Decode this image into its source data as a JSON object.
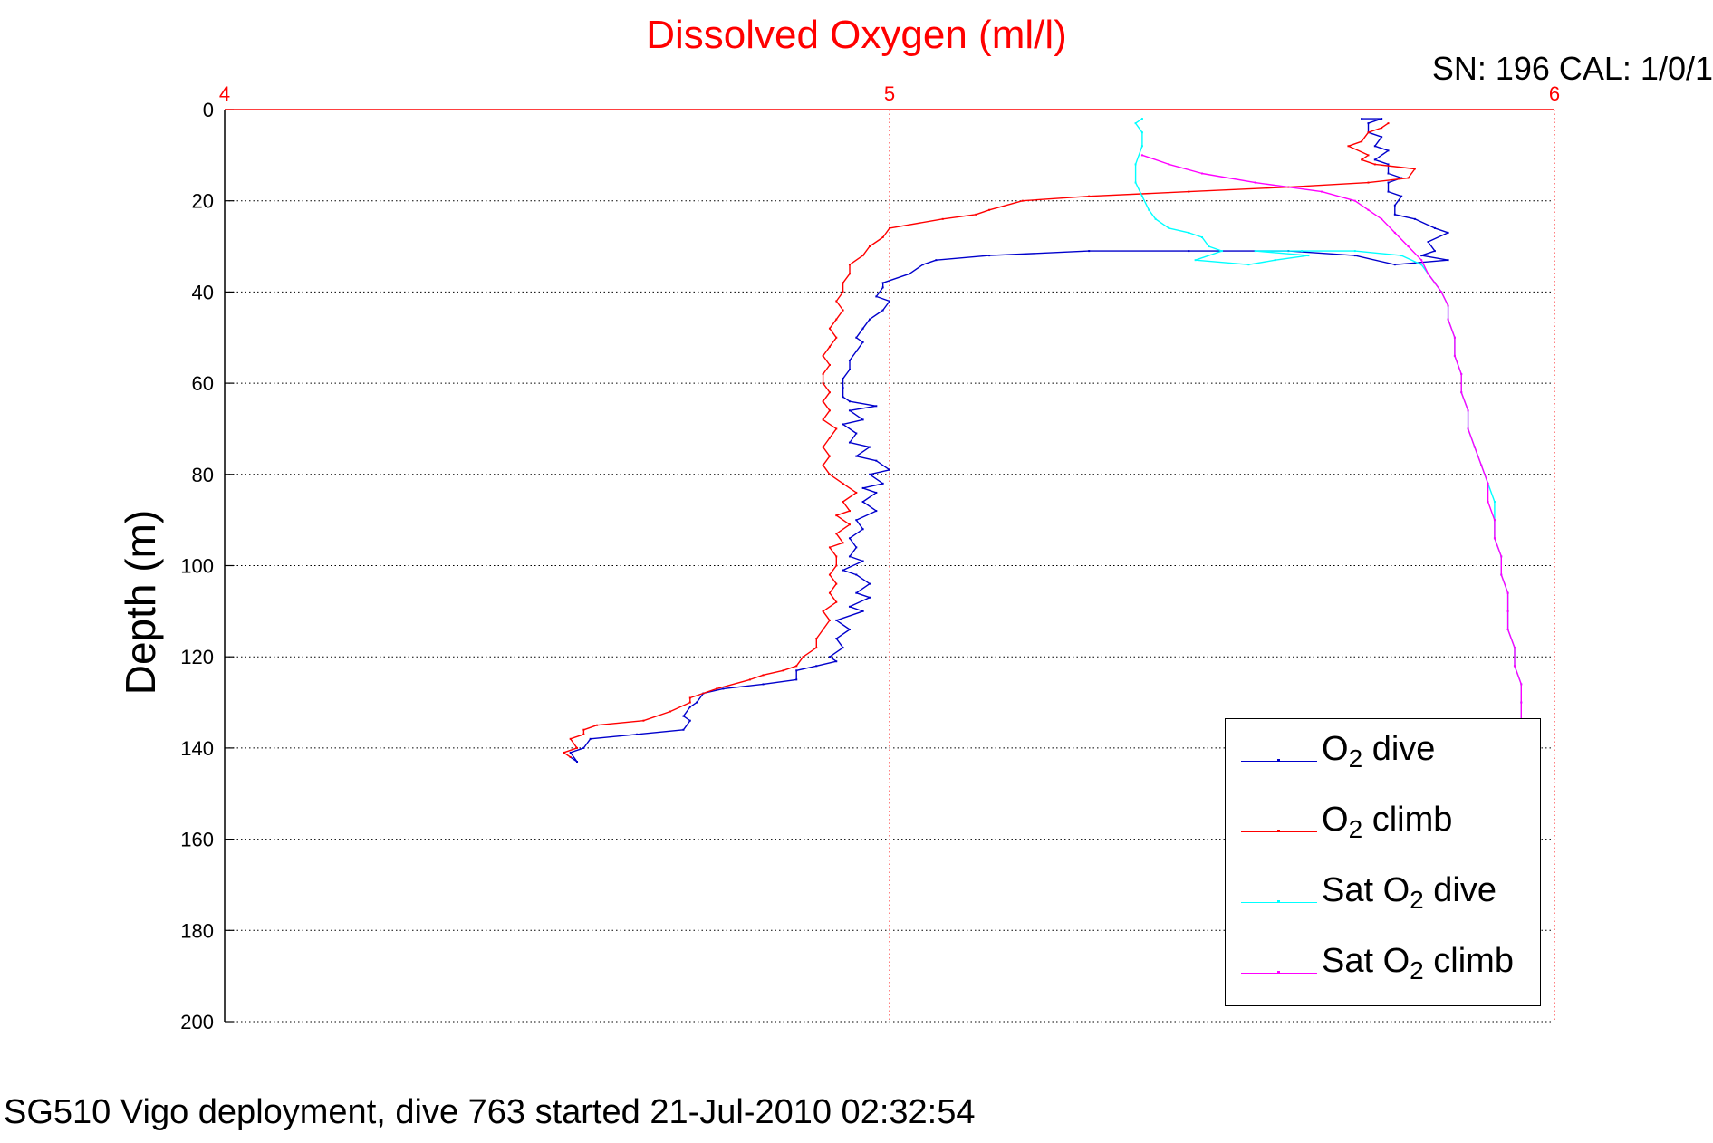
{
  "title_top": "Dissolved Oxygen (ml/l)",
  "sn_label": "SN: 196  CAL: 1/0/1",
  "caption": "SG510 Vigo deployment, dive 763 started 21-Jul-2010 02:32:54",
  "legend": {
    "items": [
      {
        "prefix": "O",
        "sub": "2",
        "suffix": " dive",
        "color": "#0000cc"
      },
      {
        "prefix": "O",
        "sub": "2",
        "suffix": " climb",
        "color": "#ff0000"
      },
      {
        "prefix": "Sat O",
        "sub": "2",
        "suffix": " dive",
        "color": "#00ffff"
      },
      {
        "prefix": "Sat O",
        "sub": "2",
        "suffix": " climb",
        "color": "#ff00ff"
      }
    ]
  },
  "chart_data": {
    "type": "line",
    "title": "Dissolved Oxygen (ml/l)",
    "xlabel": "",
    "ylabel": "Depth (m)",
    "xlim": [
      4,
      6
    ],
    "ylim": [
      0,
      200
    ],
    "y_reversed": true,
    "x_axis_position": "top",
    "x_ticks": [
      4,
      5,
      6
    ],
    "y_ticks": [
      0,
      20,
      40,
      60,
      80,
      100,
      120,
      140,
      160,
      180,
      200
    ],
    "x_tick_color": "#ff0000",
    "x_grid_color": "#ff0000",
    "grid": true,
    "legend_position": "bottom-right",
    "series": [
      {
        "name": "O2 dive",
        "color": "#0000cc",
        "points": [
          [
            5.71,
            2
          ],
          [
            5.74,
            2
          ],
          [
            5.72,
            3
          ],
          [
            5.72,
            5
          ],
          [
            5.74,
            6
          ],
          [
            5.73,
            8
          ],
          [
            5.75,
            9
          ],
          [
            5.73,
            11
          ],
          [
            5.75,
            12
          ],
          [
            5.75,
            14
          ],
          [
            5.77,
            15
          ],
          [
            5.75,
            16
          ],
          [
            5.75,
            18
          ],
          [
            5.77,
            19
          ],
          [
            5.76,
            21
          ],
          [
            5.76,
            23
          ],
          [
            5.79,
            24
          ],
          [
            5.82,
            26
          ],
          [
            5.84,
            27
          ],
          [
            5.81,
            29
          ],
          [
            5.82,
            31
          ],
          [
            5.8,
            32
          ],
          [
            5.84,
            33
          ],
          [
            5.76,
            34
          ],
          [
            5.7,
            32
          ],
          [
            5.6,
            31
          ],
          [
            5.45,
            31
          ],
          [
            5.3,
            31
          ],
          [
            5.15,
            32
          ],
          [
            5.07,
            33
          ],
          [
            5.05,
            34
          ],
          [
            5.03,
            36
          ],
          [
            4.99,
            38
          ],
          [
            4.99,
            39
          ],
          [
            4.98,
            41
          ],
          [
            5.0,
            42
          ],
          [
            4.99,
            44
          ],
          [
            4.97,
            46
          ],
          [
            4.96,
            48
          ],
          [
            4.95,
            50
          ],
          [
            4.96,
            51
          ],
          [
            4.95,
            53
          ],
          [
            4.94,
            55
          ],
          [
            4.94,
            57
          ],
          [
            4.93,
            59
          ],
          [
            4.93,
            61
          ],
          [
            4.93,
            63
          ],
          [
            4.94,
            64
          ],
          [
            4.98,
            65
          ],
          [
            4.94,
            66
          ],
          [
            4.96,
            68
          ],
          [
            4.93,
            69
          ],
          [
            4.95,
            71
          ],
          [
            4.94,
            73
          ],
          [
            4.97,
            74
          ],
          [
            4.95,
            76
          ],
          [
            4.98,
            77
          ],
          [
            5.0,
            79
          ],
          [
            4.97,
            80
          ],
          [
            4.99,
            82
          ],
          [
            4.96,
            83
          ],
          [
            4.98,
            84
          ],
          [
            4.96,
            86
          ],
          [
            4.98,
            88
          ],
          [
            4.95,
            90
          ],
          [
            4.96,
            92
          ],
          [
            4.94,
            94
          ],
          [
            4.95,
            96
          ],
          [
            4.94,
            98
          ],
          [
            4.96,
            99
          ],
          [
            4.93,
            101
          ],
          [
            4.95,
            102
          ],
          [
            4.97,
            104
          ],
          [
            4.95,
            106
          ],
          [
            4.97,
            107
          ],
          [
            4.94,
            109
          ],
          [
            4.96,
            110
          ],
          [
            4.92,
            112
          ],
          [
            4.94,
            114
          ],
          [
            4.92,
            116
          ],
          [
            4.93,
            118
          ],
          [
            4.91,
            120
          ],
          [
            4.92,
            121
          ],
          [
            4.89,
            122
          ],
          [
            4.86,
            123
          ],
          [
            4.86,
            125
          ],
          [
            4.81,
            126
          ],
          [
            4.75,
            127
          ],
          [
            4.72,
            128
          ],
          [
            4.71,
            130
          ],
          [
            4.7,
            131
          ],
          [
            4.69,
            133
          ],
          [
            4.7,
            134
          ],
          [
            4.69,
            136
          ],
          [
            4.62,
            137
          ],
          [
            4.55,
            138
          ],
          [
            4.54,
            140
          ],
          [
            4.52,
            141
          ],
          [
            4.53,
            143
          ],
          [
            4.52,
            142
          ]
        ]
      },
      {
        "name": "O2 climb",
        "color": "#ff0000",
        "points": [
          [
            4.52,
            142
          ],
          [
            4.51,
            141
          ],
          [
            4.53,
            140
          ],
          [
            4.52,
            138
          ],
          [
            4.54,
            137
          ],
          [
            4.54,
            136
          ],
          [
            4.56,
            135
          ],
          [
            4.63,
            134
          ],
          [
            4.67,
            132
          ],
          [
            4.7,
            130
          ],
          [
            4.7,
            129
          ],
          [
            4.74,
            127
          ],
          [
            4.79,
            125
          ],
          [
            4.81,
            124
          ],
          [
            4.84,
            123
          ],
          [
            4.86,
            122
          ],
          [
            4.87,
            120
          ],
          [
            4.89,
            118
          ],
          [
            4.89,
            116
          ],
          [
            4.9,
            114
          ],
          [
            4.91,
            112
          ],
          [
            4.9,
            110
          ],
          [
            4.92,
            108
          ],
          [
            4.91,
            106
          ],
          [
            4.92,
            104
          ],
          [
            4.91,
            102
          ],
          [
            4.92,
            100
          ],
          [
            4.92,
            98
          ],
          [
            4.91,
            96
          ],
          [
            4.93,
            95
          ],
          [
            4.92,
            93
          ],
          [
            4.94,
            91
          ],
          [
            4.92,
            89
          ],
          [
            4.94,
            88
          ],
          [
            4.93,
            86
          ],
          [
            4.95,
            84
          ],
          [
            4.93,
            82
          ],
          [
            4.91,
            80
          ],
          [
            4.9,
            78
          ],
          [
            4.91,
            76
          ],
          [
            4.9,
            74
          ],
          [
            4.91,
            72
          ],
          [
            4.92,
            70
          ],
          [
            4.9,
            68
          ],
          [
            4.91,
            66
          ],
          [
            4.9,
            64
          ],
          [
            4.91,
            62
          ],
          [
            4.9,
            60
          ],
          [
            4.9,
            58
          ],
          [
            4.91,
            56
          ],
          [
            4.9,
            54
          ],
          [
            4.91,
            52
          ],
          [
            4.92,
            50
          ],
          [
            4.91,
            48
          ],
          [
            4.92,
            46
          ],
          [
            4.93,
            44
          ],
          [
            4.92,
            42
          ],
          [
            4.93,
            40
          ],
          [
            4.93,
            38
          ],
          [
            4.94,
            36
          ],
          [
            4.94,
            34
          ],
          [
            4.96,
            32
          ],
          [
            4.97,
            30
          ],
          [
            4.99,
            28
          ],
          [
            5.0,
            26
          ],
          [
            5.08,
            24
          ],
          [
            5.13,
            23
          ],
          [
            5.15,
            22
          ],
          [
            5.2,
            20
          ],
          [
            5.3,
            19
          ],
          [
            5.45,
            18
          ],
          [
            5.6,
            17
          ],
          [
            5.72,
            16
          ],
          [
            5.78,
            15
          ],
          [
            5.79,
            13
          ],
          [
            5.73,
            12
          ],
          [
            5.71,
            11
          ],
          [
            5.72,
            10
          ],
          [
            5.69,
            8
          ],
          [
            5.71,
            7
          ],
          [
            5.72,
            5
          ],
          [
            5.74,
            4
          ],
          [
            5.75,
            3
          ]
        ]
      },
      {
        "name": "Sat O2 dive",
        "color": "#00ffff",
        "points": [
          [
            5.38,
            2
          ],
          [
            5.37,
            3
          ],
          [
            5.38,
            5
          ],
          [
            5.38,
            8
          ],
          [
            5.37,
            12
          ],
          [
            5.37,
            16
          ],
          [
            5.38,
            19
          ],
          [
            5.39,
            22
          ],
          [
            5.4,
            24
          ],
          [
            5.42,
            26
          ],
          [
            5.45,
            27
          ],
          [
            5.47,
            28
          ],
          [
            5.48,
            30
          ],
          [
            5.5,
            31
          ],
          [
            5.46,
            33
          ],
          [
            5.54,
            34
          ],
          [
            5.58,
            33
          ],
          [
            5.63,
            32
          ],
          [
            5.55,
            31
          ],
          [
            5.62,
            31
          ],
          [
            5.7,
            31
          ],
          [
            5.77,
            32
          ],
          [
            5.8,
            34
          ],
          [
            5.81,
            36
          ],
          [
            5.82,
            38
          ],
          [
            5.83,
            40
          ],
          [
            5.84,
            43
          ],
          [
            5.84,
            46
          ],
          [
            5.85,
            50
          ],
          [
            5.85,
            54
          ],
          [
            5.86,
            58
          ],
          [
            5.86,
            62
          ],
          [
            5.87,
            66
          ],
          [
            5.87,
            70
          ],
          [
            5.88,
            74
          ],
          [
            5.89,
            78
          ],
          [
            5.9,
            82
          ],
          [
            5.91,
            86
          ],
          [
            5.91,
            90
          ],
          [
            5.91,
            94
          ],
          [
            5.92,
            98
          ],
          [
            5.92,
            102
          ],
          [
            5.93,
            106
          ],
          [
            5.93,
            110
          ],
          [
            5.93,
            114
          ],
          [
            5.94,
            118
          ],
          [
            5.94,
            122
          ],
          [
            5.95,
            126
          ],
          [
            5.95,
            130
          ],
          [
            5.95,
            134
          ]
        ]
      },
      {
        "name": "Sat O2 climb",
        "color": "#ff00ff",
        "points": [
          [
            5.95,
            134
          ],
          [
            5.95,
            130
          ],
          [
            5.95,
            126
          ],
          [
            5.94,
            122
          ],
          [
            5.94,
            118
          ],
          [
            5.93,
            114
          ],
          [
            5.93,
            110
          ],
          [
            5.93,
            106
          ],
          [
            5.92,
            102
          ],
          [
            5.92,
            98
          ],
          [
            5.91,
            94
          ],
          [
            5.91,
            90
          ],
          [
            5.9,
            86
          ],
          [
            5.9,
            82
          ],
          [
            5.89,
            78
          ],
          [
            5.88,
            74
          ],
          [
            5.87,
            70
          ],
          [
            5.87,
            66
          ],
          [
            5.86,
            62
          ],
          [
            5.86,
            58
          ],
          [
            5.85,
            54
          ],
          [
            5.85,
            50
          ],
          [
            5.84,
            46
          ],
          [
            5.84,
            43
          ],
          [
            5.83,
            40
          ],
          [
            5.82,
            38
          ],
          [
            5.81,
            36
          ],
          [
            5.8,
            33
          ],
          [
            5.78,
            30
          ],
          [
            5.76,
            27
          ],
          [
            5.74,
            24
          ],
          [
            5.72,
            22
          ],
          [
            5.7,
            20
          ],
          [
            5.65,
            18
          ],
          [
            5.55,
            16
          ],
          [
            5.47,
            14
          ],
          [
            5.42,
            12
          ],
          [
            5.38,
            10
          ]
        ]
      }
    ]
  }
}
